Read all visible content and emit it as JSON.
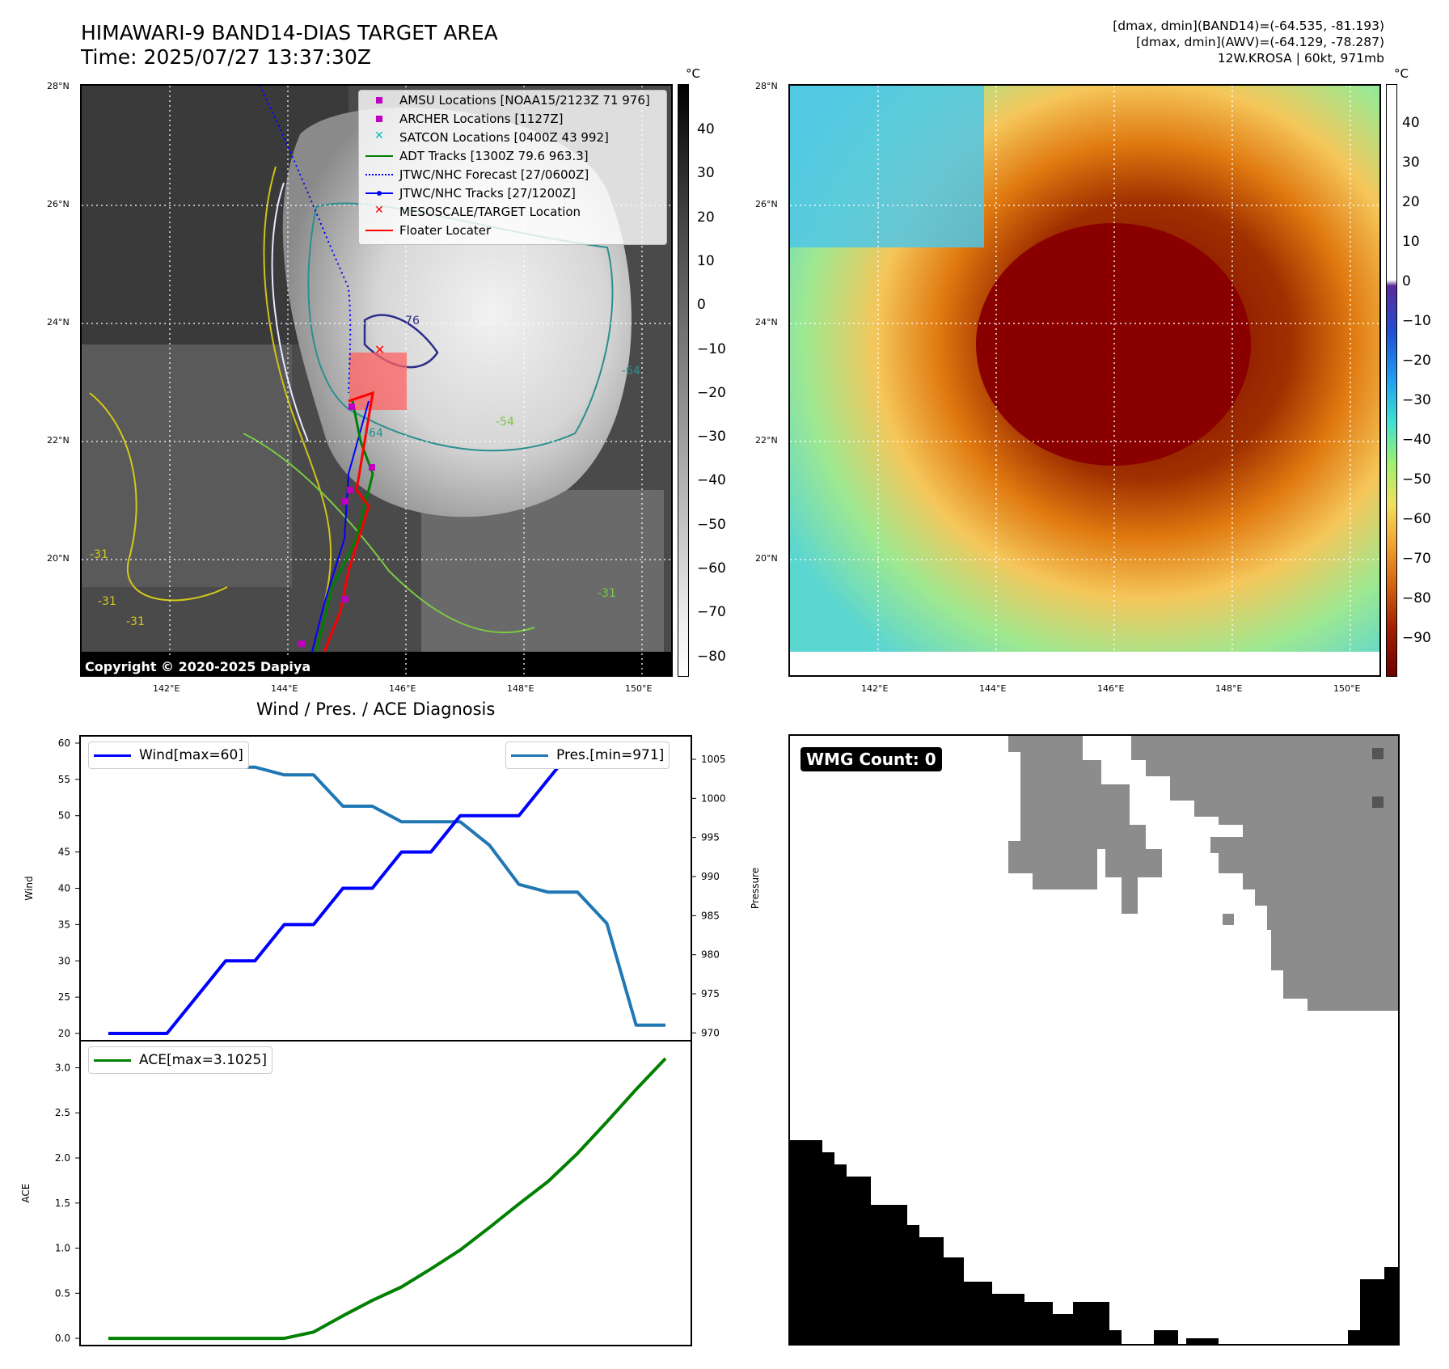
{
  "header": {
    "title_line1": "HIMAWARI-9 BAND14-DIAS TARGET AREA",
    "title_line2": "Time: 2025/07/27 13:37:30Z",
    "right_line1": "[dmax, dmin](BAND14)=(-64.535, -81.193)",
    "right_line2": "[dmax, dmin](AWV)=(-64.129, -78.287)",
    "right_line3": "12W.KROSA | 60kt, 971mb"
  },
  "map": {
    "lat_labels": [
      "28°N",
      "26°N",
      "24°N",
      "22°N",
      "20°N"
    ],
    "lon_labels": [
      "142°E",
      "144°E",
      "146°E",
      "148°E",
      "150°E"
    ],
    "copyright": "Copyright © 2020-2025 Dapiya",
    "contour_labels": [
      "-76",
      "-64",
      "-64",
      "-54",
      "-31",
      "-31",
      "-31",
      "-31"
    ]
  },
  "legend": {
    "items": [
      {
        "label": "AMSU Locations [NOAA15/2123Z 71 976]",
        "marker": "square",
        "color": "#c000c0"
      },
      {
        "label": "ARCHER Locations [1127Z]",
        "marker": "square",
        "color": "#c000c0"
      },
      {
        "label": "SATCON Locations [0400Z 43 992]",
        "marker": "x",
        "color": "#00bfbf"
      },
      {
        "label": "ADT Tracks [1300Z 79.6 963.3]",
        "marker": "line",
        "color": "#008000"
      },
      {
        "label": "JTWC/NHC Forecast [27/0600Z]",
        "marker": "dotted",
        "color": "#0000ff"
      },
      {
        "label": "JTWC/NHC Tracks [27/1200Z]",
        "marker": "line-dot",
        "color": "#0000ff"
      },
      {
        "label": "MESOSCALE/TARGET Location",
        "marker": "x",
        "color": "#ff0000"
      },
      {
        "label": "Floater Locater",
        "marker": "line",
        "color": "#ff0000"
      }
    ]
  },
  "colorbar_left": {
    "unit": "°C",
    "ticks": [
      "40",
      "30",
      "20",
      "10",
      "0",
      "−10",
      "−20",
      "−30",
      "−40",
      "−50",
      "−60",
      "−70",
      "−80"
    ]
  },
  "colorbar_right": {
    "unit": "°C",
    "ticks": [
      "40",
      "30",
      "20",
      "10",
      "0",
      "−10",
      "−20",
      "−30",
      "−40",
      "−50",
      "−60",
      "−70",
      "−80",
      "−90"
    ]
  },
  "chart_data": [
    {
      "type": "line",
      "title": "Wind / Pres. / ACE Diagnosis",
      "ylabel": "Wind",
      "y2label": "Pressure",
      "ylim": [
        19,
        61
      ],
      "y2lim": [
        969,
        1008
      ],
      "yticks": [
        "60",
        "55",
        "50",
        "45",
        "40",
        "35",
        "30",
        "25",
        "20"
      ],
      "y2ticks": [
        "1005",
        "1000",
        "995",
        "990",
        "985",
        "980",
        "975",
        "970"
      ],
      "x": [
        0,
        1,
        2,
        3,
        4,
        5,
        6,
        7,
        8,
        9,
        10,
        11,
        12,
        13,
        14,
        15,
        16,
        17,
        18,
        19
      ],
      "series": [
        {
          "name": "Wind[max=60]",
          "axis": "left",
          "color": "#0000ff",
          "values": [
            20,
            20,
            20,
            25,
            30,
            30,
            35,
            35,
            40,
            40,
            45,
            45,
            50,
            50,
            50,
            55,
            60,
            60,
            60,
            60
          ]
        },
        {
          "name": "Pres.[min=971]",
          "axis": "right",
          "color": "#1f77b4",
          "values": [
            1006,
            1006,
            1006,
            1006,
            1004,
            1004,
            1003,
            1003,
            999,
            999,
            997,
            997,
            997,
            994,
            989,
            988,
            988,
            984,
            971,
            971
          ]
        }
      ]
    },
    {
      "type": "line",
      "ylabel": "ACE",
      "ylim": [
        -0.08,
        3.3
      ],
      "yticks": [
        "3.0",
        "2.5",
        "2.0",
        "1.5",
        "1.0",
        "0.5",
        "0.0"
      ],
      "x": [
        0,
        1,
        2,
        3,
        4,
        5,
        6,
        7,
        8,
        9,
        10,
        11,
        12,
        13,
        14,
        15,
        16,
        17,
        18,
        19
      ],
      "series": [
        {
          "name": "ACE[max=3.1025]",
          "color": "#008000",
          "values": [
            0,
            0,
            0,
            0,
            0,
            0,
            0,
            0.07,
            0.25,
            0.42,
            0.57,
            0.77,
            0.98,
            1.23,
            1.49,
            1.74,
            2.05,
            2.4,
            2.76,
            3.1025
          ]
        }
      ]
    }
  ],
  "wmg": {
    "label": "WMG Count: 0"
  }
}
